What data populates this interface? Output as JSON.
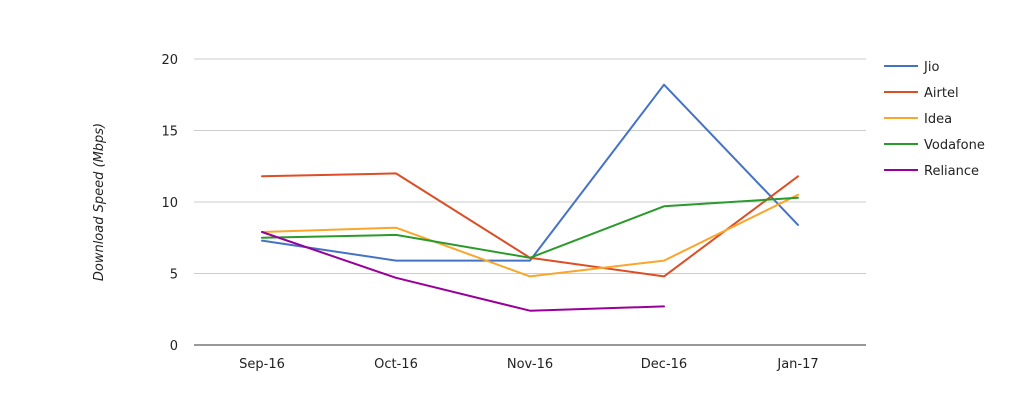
{
  "chart_data": {
    "type": "line",
    "categories": [
      "Sep-16",
      "Oct-16",
      "Nov-16",
      "Dec-16",
      "Jan-17"
    ],
    "ylabel": "Download Speed (Mbps)",
    "xlabel": "",
    "ylim": [
      0,
      20
    ],
    "yticks": [
      0,
      5,
      10,
      15,
      20
    ],
    "grid": true,
    "legend_position": "right",
    "series": [
      {
        "name": "Jio",
        "color": "#4472c4",
        "values": [
          7.3,
          5.9,
          5.9,
          18.2,
          8.4
        ]
      },
      {
        "name": "Airtel",
        "color": "#dc4e26",
        "values": [
          11.8,
          12.0,
          6.1,
          4.8,
          11.8
        ]
      },
      {
        "name": "Idea",
        "color": "#f9a62b",
        "values": [
          7.9,
          8.2,
          4.8,
          5.9,
          10.5
        ]
      },
      {
        "name": "Vodafone",
        "color": "#2a9a2a",
        "values": [
          7.5,
          7.7,
          6.1,
          9.7,
          10.3
        ]
      },
      {
        "name": "Reliance",
        "color": "#990099",
        "values": [
          7.9,
          4.7,
          2.4,
          2.7,
          null
        ]
      }
    ]
  }
}
